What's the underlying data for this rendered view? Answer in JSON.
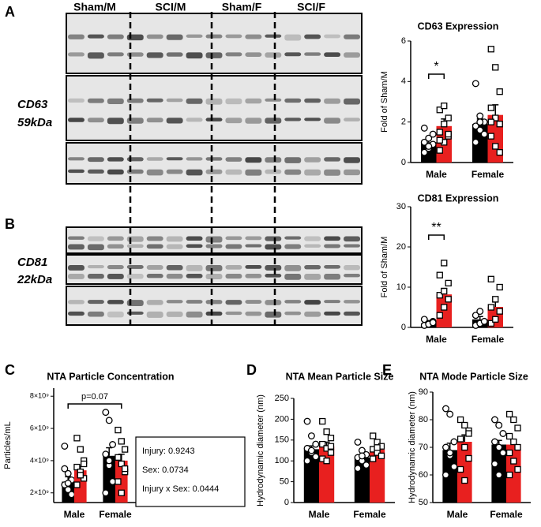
{
  "panel_labels": [
    "A",
    "B",
    "C",
    "D",
    "E"
  ],
  "blot": {
    "groups": [
      "Sham/M",
      "SCI/M",
      "Sham/F",
      "SCI/F"
    ],
    "group_colors": [
      "#000000",
      "#e8201f",
      "#000000",
      "#e8201f"
    ],
    "cd63": [
      "CD63",
      "59kDa"
    ],
    "cd81": [
      "CD81",
      "22kDa"
    ]
  },
  "chart_data": [
    {
      "type": "bar",
      "title": "CD63 Expression",
      "y_label": "Fold of Sham/M",
      "categories": [
        "Male",
        "Female"
      ],
      "ylim": [
        0,
        6
      ],
      "yticks": [
        0,
        2,
        4,
        6
      ],
      "annotation": "*",
      "series": [
        {
          "color": "#000000",
          "marker": "circle",
          "values": [
            1.0,
            1.9
          ],
          "errors": [
            0.2,
            0.25
          ],
          "points": [
            [
              0.5,
              0.7,
              0.9,
              1.0,
              1.2,
              1.4,
              1.7,
              0.8
            ],
            [
              3.9,
              2.3,
              2.0,
              1.8,
              1.6,
              1.4,
              1.0,
              2.0
            ]
          ]
        },
        {
          "color": "#e8201f",
          "marker": "square",
          "values": [
            1.8,
            2.35
          ],
          "errors": [
            0.35,
            0.5
          ],
          "points": [
            [
              0.6,
              1.0,
              1.3,
              1.5,
              1.9,
              2.2,
              2.6,
              2.8,
              1.4,
              1.1
            ],
            [
              5.6,
              4.7,
              3.5,
              2.7,
              2.2,
              1.9,
              1.3,
              0.8,
              0.5,
              2.0
            ]
          ]
        }
      ]
    },
    {
      "type": "bar",
      "title": "CD81 Expression",
      "y_label": "Fold of Sham/M",
      "categories": [
        "Male",
        "Female"
      ],
      "ylim": [
        0,
        30
      ],
      "yticks": [
        0,
        10,
        20,
        30
      ],
      "annotation": "**",
      "series": [
        {
          "color": "#000000",
          "marker": "circle",
          "values": [
            1.0,
            2.0
          ],
          "errors": [
            0.3,
            0.7
          ],
          "points": [
            [
              0.5,
              1.0,
              1.5,
              2.0,
              0.8,
              1.2
            ],
            [
              0.5,
              1.0,
              1.5,
              3.0,
              4.0
            ]
          ]
        },
        {
          "color": "#e8201f",
          "marker": "square",
          "values": [
            8.2,
            5.1
          ],
          "errors": [
            1.5,
            1.2
          ],
          "points": [
            [
              3,
              5,
              7,
              8,
              9,
              11,
              13,
              16
            ],
            [
              1,
              2,
              4,
              5,
              7,
              10,
              12
            ]
          ]
        }
      ]
    },
    {
      "type": "bar",
      "title": "NTA Particle Concentration",
      "y_label": "Particles/mL",
      "categories": [
        "Male",
        "Female"
      ],
      "ylim": [
        1400000000,
        8500000000
      ],
      "yticks": [
        {
          "value": 2000000000,
          "label": "2×10⁹"
        },
        {
          "value": 4000000000,
          "label": "4×10⁹"
        },
        {
          "value": 6000000000,
          "label": "6×10⁹"
        },
        {
          "value": 8000000000,
          "label": "8×10⁹"
        }
      ],
      "annotation": "p=0.07",
      "stats": [
        "Injury: 0.9243",
        "Sex: 0.0734",
        "Injury x Sex: 0.0444"
      ],
      "series": [
        {
          "color": "#000000",
          "marker": "circle",
          "values": [
            2700000000,
            4300000000
          ],
          "errors": [
            300000000,
            500000000
          ],
          "points": [
            [
              4900000000,
              3200000000,
              2800000000,
              2500000000,
              2200000000,
              1900000000,
              3500000000,
              2600000000
            ],
            [
              7000000000,
              6500000000,
              5000000000,
              4400000000,
              3700000000,
              2700000000,
              2000000000,
              4000000000
            ]
          ]
        },
        {
          "color": "#e8201f",
          "marker": "square",
          "values": [
            3400000000,
            4000000000
          ],
          "errors": [
            250000000,
            400000000
          ],
          "points": [
            [
              5400000000,
              4700000000,
              4000000000,
              3600000000,
              3300000000,
              2900000000,
              2500000000,
              3100000000,
              3800000000
            ],
            [
              5900000000,
              5200000000,
              4700000000,
              4200000000,
              3800000000,
              3300000000,
              2700000000,
              2000000000,
              3500000000
            ]
          ]
        }
      ]
    },
    {
      "type": "bar",
      "title": "NTA Mean Particle Size",
      "y_label": "Hydrodynamic diameter (nm)",
      "categories": [
        "Male",
        "Female"
      ],
      "ylim": [
        0,
        250
      ],
      "yticks": [
        0,
        50,
        100,
        150,
        200,
        250
      ],
      "series": [
        {
          "color": "#000000",
          "marker": "circle",
          "values": [
            128,
            108
          ],
          "errors": [
            8,
            6
          ],
          "points": [
            [
              195,
              160,
              140,
              130,
              120,
              110,
              100,
              125
            ],
            [
              145,
              125,
              115,
              108,
              100,
              90,
              82,
              112
            ]
          ]
        },
        {
          "color": "#e8201f",
          "marker": "square",
          "values": [
            135,
            127
          ],
          "errors": [
            10,
            7
          ],
          "points": [
            [
              195,
              170,
              155,
              140,
              130,
              120,
              105,
              100,
              135
            ],
            [
              160,
              145,
              135,
              128,
              120,
              112,
              105,
              132
            ]
          ]
        }
      ]
    },
    {
      "type": "bar",
      "title": "NTA Mode Particle Size",
      "y_label": "Hydrodynamic diameter (nm)",
      "categories": [
        "Male",
        "Female"
      ],
      "ylim": [
        50,
        90
      ],
      "yticks": [
        50,
        60,
        70,
        80,
        90
      ],
      "series": [
        {
          "color": "#000000",
          "marker": "circle",
          "values": [
            69,
            71
          ],
          "errors": [
            2.5,
            1.5
          ],
          "points": [
            [
              84,
              82,
              72,
              70,
              67,
              63,
              60,
              68
            ],
            [
              80,
              78,
              75,
              72,
              70,
              68,
              64,
              60
            ]
          ]
        },
        {
          "color": "#e8201f",
          "marker": "square",
          "values": [
            72,
            71
          ],
          "errors": [
            2.5,
            1.5
          ],
          "points": [
            [
              80,
              78,
              76,
              73,
              70,
              66,
              62,
              58,
              75
            ],
            [
              82,
              80,
              77,
              74,
              72,
              70,
              68,
              65,
              62,
              60
            ]
          ]
        }
      ]
    }
  ]
}
